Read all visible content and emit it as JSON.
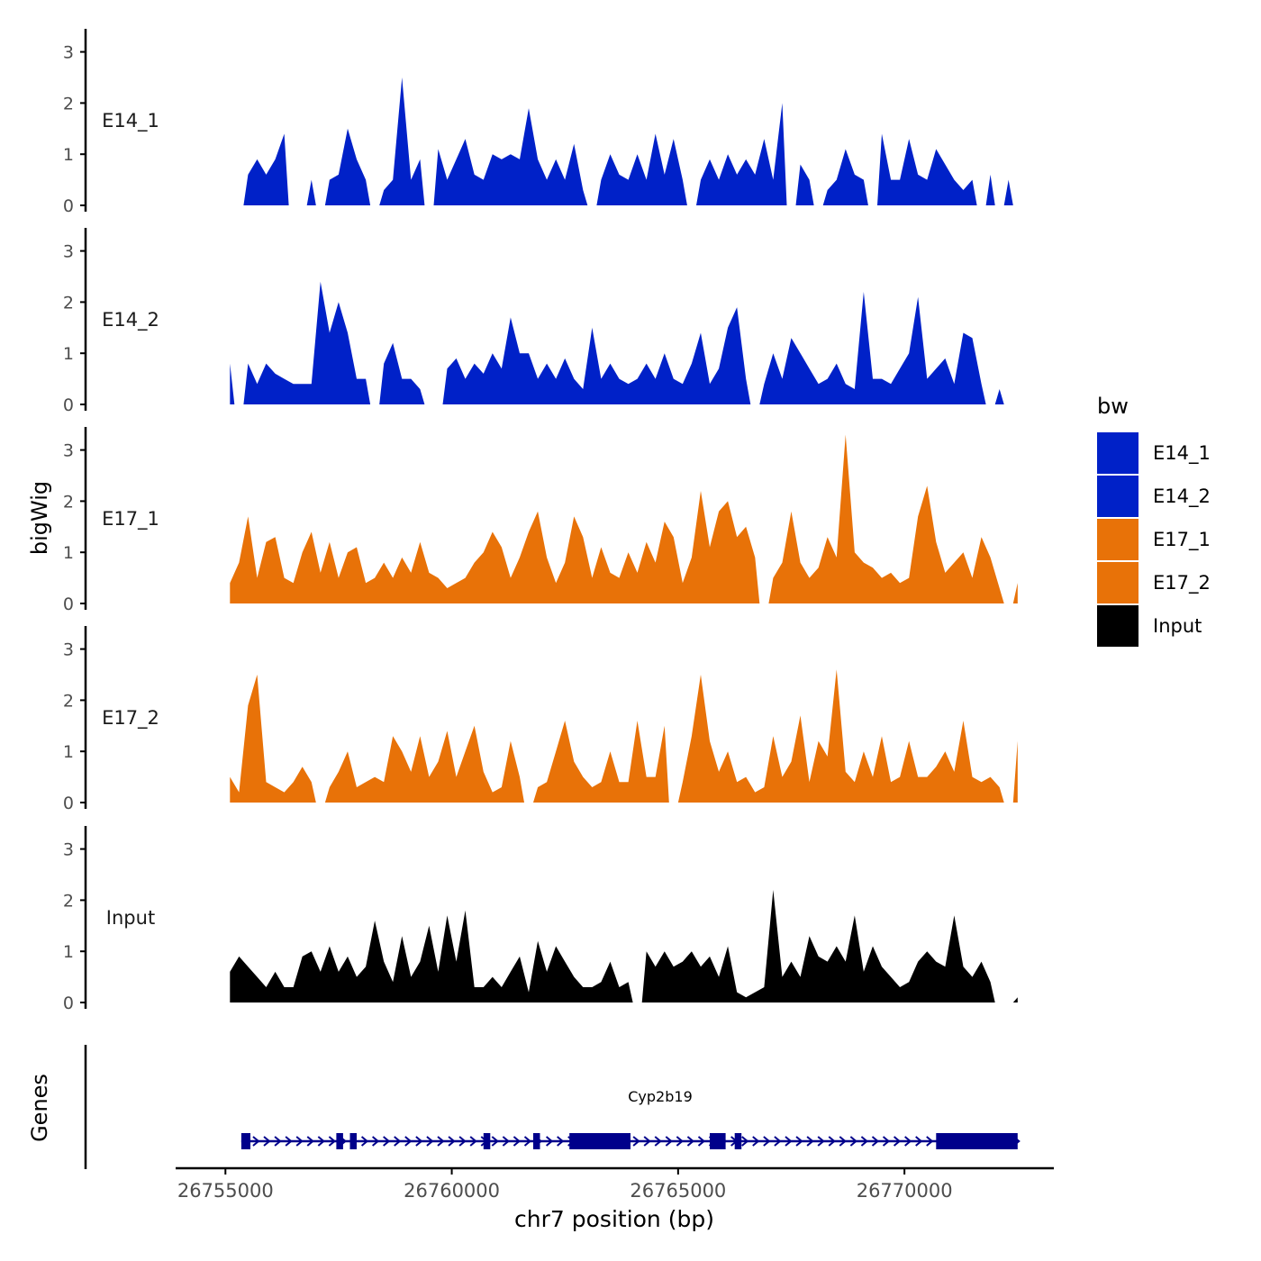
{
  "chart_data": {
    "type": "area",
    "ylabel": "bigWig",
    "xlabel": "chr7 position (bp)",
    "xlim": [
      26753900,
      26773300
    ],
    "x_ticks": [
      26755000,
      26760000,
      26765000,
      26770000
    ],
    "x_tick_labels": [
      "26755000",
      "26760000",
      "26765000",
      "26770000"
    ],
    "ylim": [
      0,
      3.4
    ],
    "y_ticks": [
      0,
      1,
      2,
      3
    ],
    "y_tick_labels": [
      "0",
      "1",
      "2",
      "3"
    ],
    "signal_x": [
      26755100,
      26755300,
      26755500,
      26755700,
      26755900,
      26756100,
      26756300,
      26756500,
      26756700,
      26756900,
      26757100,
      26757300,
      26757500,
      26757700,
      26757900,
      26758100,
      26758300,
      26758500,
      26758700,
      26758900,
      26759100,
      26759300,
      26759500,
      26759700,
      26759900,
      26760100,
      26760300,
      26760500,
      26760700,
      26760900,
      26761100,
      26761300,
      26761500,
      26761700,
      26761900,
      26762100,
      26762300,
      26762500,
      26762700,
      26762900,
      26763100,
      26763300,
      26763500,
      26763700,
      26763900,
      26764100,
      26764300,
      26764500,
      26764700,
      26764900,
      26765100,
      26765300,
      26765500,
      26765700,
      26765900,
      26766100,
      26766300,
      26766500,
      26766700,
      26766900,
      26767100,
      26767300,
      26767500,
      26767700,
      26767900,
      26768100,
      26768300,
      26768500,
      26768700,
      26768900,
      26769100,
      26769300,
      26769500,
      26769700,
      26769900,
      26770100,
      26770300,
      26770500,
      26770700,
      26770900,
      26771100,
      26771300,
      26771500,
      26771700,
      26771900,
      26772100,
      26772300,
      26772500
    ],
    "series": [
      {
        "name": "E14_1",
        "label": "E14_1",
        "color": "#0021c8",
        "values": [
          0,
          0,
          0.6,
          0.9,
          0.6,
          0.9,
          1.4,
          0,
          0,
          0.5,
          0,
          0.5,
          0.6,
          1.5,
          0.9,
          0.5,
          0,
          0.3,
          0.5,
          2.5,
          0.5,
          0.9,
          0,
          1.1,
          0.5,
          0.9,
          1.3,
          0.6,
          0.5,
          1.0,
          0.9,
          1.0,
          0.9,
          1.9,
          0.9,
          0.5,
          0.9,
          0.5,
          1.2,
          0.3,
          0,
          0.5,
          1.0,
          0.6,
          0.5,
          1.0,
          0.5,
          1.4,
          0.6,
          1.3,
          0.5,
          0,
          0.5,
          0.9,
          0.5,
          1.0,
          0.6,
          0.9,
          0.6,
          1.3,
          0.5,
          2.0,
          0,
          0.8,
          0.5,
          0,
          0.3,
          0.5,
          1.1,
          0.6,
          0.5,
          0,
          1.4,
          0.5,
          0.5,
          1.3,
          0.6,
          0.5,
          1.1,
          0.8,
          0.5,
          0.3,
          0.5,
          0,
          0.6,
          0,
          0.5,
          0
        ]
      },
      {
        "name": "E14_2",
        "label": "E14_2",
        "color": "#0021c8",
        "values": [
          0.8,
          0,
          0.8,
          0.4,
          0.8,
          0.6,
          0.5,
          0.4,
          0.4,
          0.4,
          2.4,
          1.4,
          2.0,
          1.4,
          0.5,
          0.5,
          0,
          0.8,
          1.2,
          0.5,
          0.5,
          0.3,
          0,
          0,
          0.7,
          0.9,
          0.5,
          0.8,
          0.6,
          1.0,
          0.7,
          1.7,
          1.0,
          1.0,
          0.5,
          0.8,
          0.5,
          0.9,
          0.5,
          0.3,
          1.5,
          0.5,
          0.8,
          0.5,
          0.4,
          0.5,
          0.8,
          0.5,
          1.0,
          0.5,
          0.4,
          0.8,
          1.4,
          0.4,
          0.7,
          1.5,
          1.9,
          0.5,
          0,
          0.4,
          1.0,
          0.5,
          1.3,
          1.0,
          0.7,
          0.4,
          0.5,
          0.8,
          0.4,
          0.3,
          2.2,
          0.5,
          0.5,
          0.4,
          0.7,
          1.0,
          2.1,
          0.5,
          0.7,
          0.9,
          0.4,
          1.4,
          1.3,
          0.4,
          0,
          0.3,
          0,
          0
        ]
      },
      {
        "name": "E17_1",
        "label": "E17_1",
        "color": "#e87208",
        "values": [
          0.4,
          0.8,
          1.7,
          0.5,
          1.2,
          1.3,
          0.5,
          0.4,
          1.0,
          1.4,
          0.6,
          1.2,
          0.5,
          1.0,
          1.1,
          0.4,
          0.5,
          0.8,
          0.5,
          0.9,
          0.6,
          1.2,
          0.6,
          0.5,
          0.3,
          0.4,
          0.5,
          0.8,
          1.0,
          1.4,
          1.1,
          0.5,
          0.9,
          1.4,
          1.8,
          0.9,
          0.4,
          0.8,
          1.7,
          1.3,
          0.5,
          1.1,
          0.6,
          0.5,
          1.0,
          0.6,
          1.2,
          0.8,
          1.6,
          1.3,
          0.4,
          0.9,
          2.2,
          1.1,
          1.8,
          2.0,
          1.3,
          1.5,
          0.9,
          0,
          0.5,
          0.8,
          1.8,
          0.8,
          0.5,
          0.7,
          1.3,
          0.9,
          3.3,
          1.0,
          0.8,
          0.7,
          0.5,
          0.6,
          0.4,
          0.5,
          1.7,
          2.3,
          1.2,
          0.6,
          0.8,
          1.0,
          0.5,
          1.3,
          0.9,
          0.3,
          0,
          0.4
        ]
      },
      {
        "name": "E17_2",
        "label": "E17_2",
        "color": "#e87208",
        "values": [
          0.5,
          0.2,
          1.9,
          2.5,
          0.4,
          0.3,
          0.2,
          0.4,
          0.7,
          0.4,
          0,
          0.3,
          0.6,
          1.0,
          0.3,
          0.4,
          0.5,
          0.4,
          1.3,
          1.0,
          0.6,
          1.3,
          0.5,
          0.8,
          1.4,
          0.5,
          1.0,
          1.5,
          0.6,
          0.2,
          0.3,
          1.2,
          0.5,
          0,
          0.3,
          0.4,
          1.0,
          1.6,
          0.8,
          0.5,
          0.3,
          0.4,
          1.0,
          0.4,
          0.4,
          1.6,
          0.5,
          0.5,
          1.5,
          0,
          0.4,
          1.3,
          2.5,
          1.2,
          0.6,
          1.0,
          0.4,
          0.5,
          0.2,
          0.3,
          1.3,
          0.5,
          0.8,
          1.7,
          0.4,
          1.2,
          0.9,
          2.6,
          0.6,
          0.4,
          1.0,
          0.5,
          1.3,
          0.4,
          0.5,
          1.2,
          0.5,
          0.5,
          0.7,
          1.0,
          0.6,
          1.6,
          0.5,
          0.4,
          0.5,
          0.3,
          0,
          1.2
        ]
      },
      {
        "name": "Input",
        "label": "Input",
        "color": "#000000",
        "values": [
          0.6,
          0.9,
          0.7,
          0.5,
          0.3,
          0.6,
          0.3,
          0.3,
          0.9,
          1.0,
          0.6,
          1.1,
          0.6,
          0.9,
          0.5,
          0.7,
          1.6,
          0.8,
          0.4,
          1.3,
          0.5,
          0.8,
          1.5,
          0.6,
          1.7,
          0.8,
          1.8,
          0.3,
          0.3,
          0.5,
          0.3,
          0.6,
          0.9,
          0.2,
          1.2,
          0.6,
          1.1,
          0.8,
          0.5,
          0.3,
          0.3,
          0.4,
          0.8,
          0.3,
          0.4,
          0,
          1.0,
          0.7,
          1.0,
          0.7,
          0.8,
          1.0,
          0.7,
          0.9,
          0.5,
          1.1,
          0.2,
          0.1,
          0.2,
          0.3,
          2.2,
          0.5,
          0.8,
          0.5,
          1.3,
          0.9,
          0.8,
          1.1,
          0.8,
          1.7,
          0.6,
          1.1,
          0.7,
          0.5,
          0.3,
          0.4,
          0.8,
          1.0,
          0.8,
          0.7,
          1.7,
          0.7,
          0.5,
          0.8,
          0.4,
          0,
          0,
          0.1
        ]
      }
    ],
    "legend": {
      "title": "bw",
      "position": "right",
      "entries": [
        "E14_1",
        "E14_2",
        "E17_1",
        "E17_2",
        "Input"
      ]
    },
    "genes_track": {
      "label": "Genes",
      "gene_name": "Cyp2b19",
      "strand": "+",
      "color": "#00008b",
      "start": 26755350,
      "end": 26772500,
      "exons": [
        [
          26755350,
          26755550
        ],
        [
          26757450,
          26757600
        ],
        [
          26757750,
          26757900
        ],
        [
          26760700,
          26760850
        ],
        [
          26761800,
          26761950
        ],
        [
          26762600,
          26763950
        ],
        [
          26765700,
          26766050
        ],
        [
          26766250,
          26766400
        ],
        [
          26770700,
          26772500
        ]
      ]
    }
  }
}
